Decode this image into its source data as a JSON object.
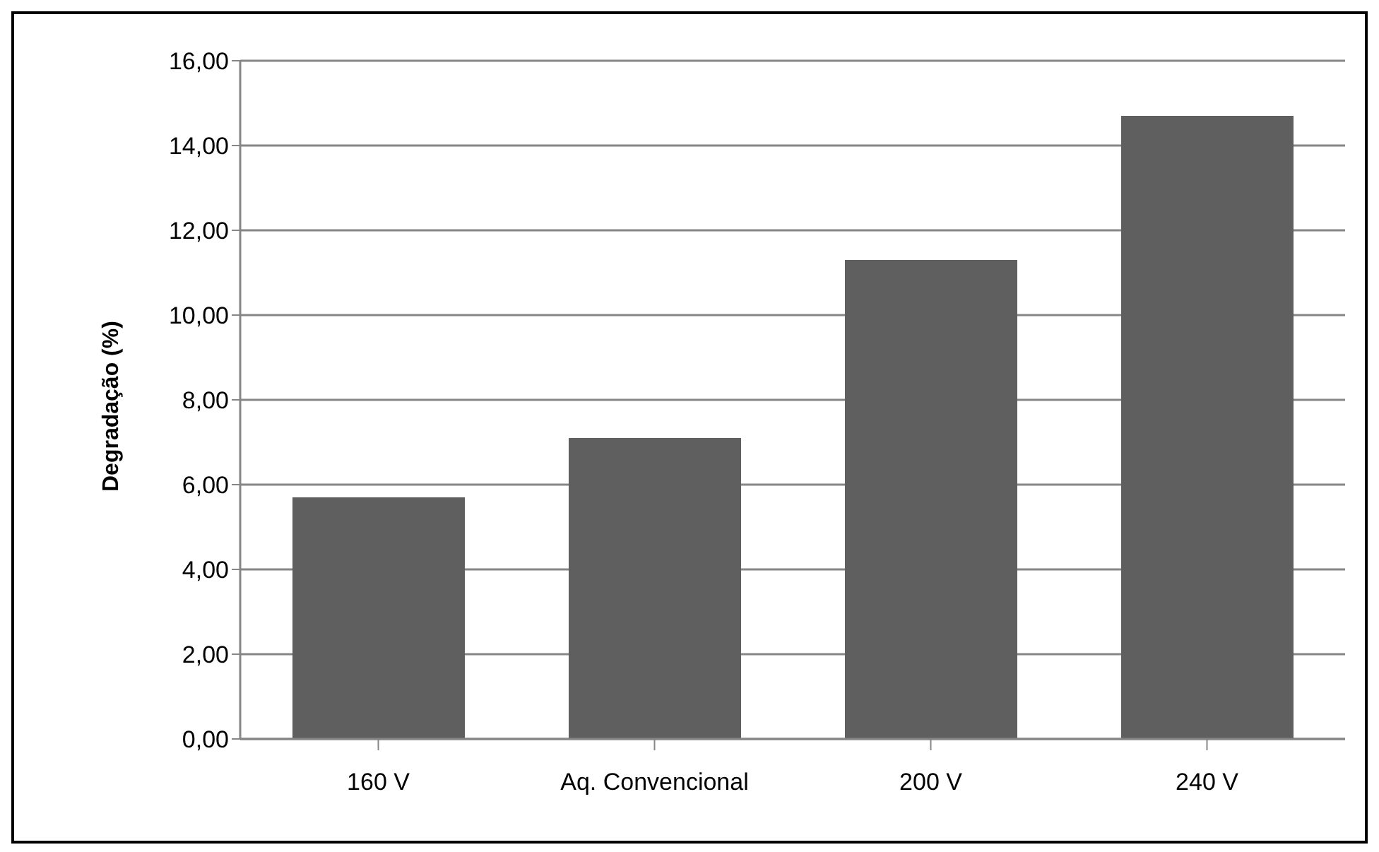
{
  "chart_data": {
    "type": "bar",
    "ylabel": "Degradação  (%)",
    "categories": [
      "160 V",
      "Aq. Convencional",
      "200 V",
      "240 V"
    ],
    "values": [
      5.7,
      7.1,
      11.3,
      14.7
    ],
    "color": "#5f5f5f",
    "ylim": [
      0,
      16
    ],
    "yticks": [
      {
        "value": 0,
        "label": "0,00"
      },
      {
        "value": 2,
        "label": "2,00"
      },
      {
        "value": 4,
        "label": "4,00"
      },
      {
        "value": 6,
        "label": "6,00"
      },
      {
        "value": 8,
        "label": "8,00"
      },
      {
        "value": 10,
        "label": "10,00"
      },
      {
        "value": 12,
        "label": "12,00"
      },
      {
        "value": 14,
        "label": "14,00"
      },
      {
        "value": 16,
        "label": "16,00"
      }
    ],
    "grid": "y"
  }
}
